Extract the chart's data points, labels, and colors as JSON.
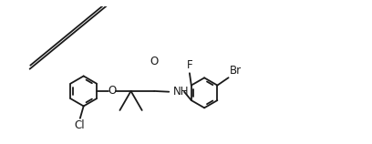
{
  "bg_color": "#ffffff",
  "line_color": "#1a1a1a",
  "line_width": 1.3,
  "font_size": 8.5,
  "figsize": [
    4.08,
    1.58
  ],
  "dpi": 100,
  "xlim": [
    -1.0,
    9.5
  ],
  "ylim": [
    -1.6,
    2.2
  ]
}
